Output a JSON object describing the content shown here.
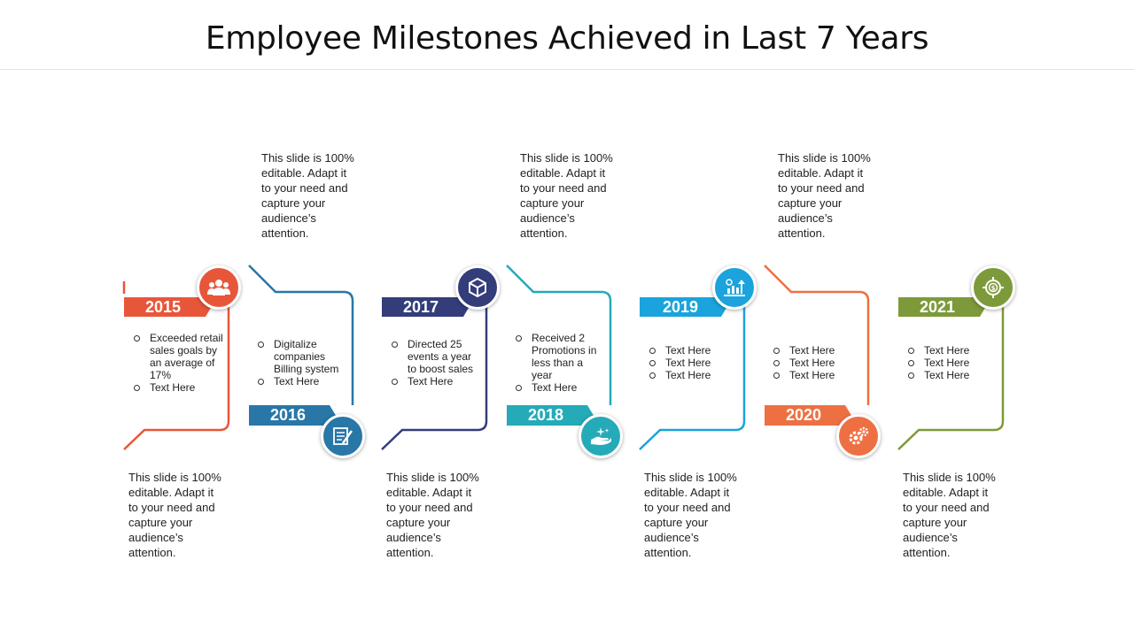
{
  "title": "Employee Milestones Achieved in Last 7 Years",
  "colors": {
    "y2015": "#e8563a",
    "y2016": "#2877a6",
    "y2017": "#333d7a",
    "y2018": "#25aab8",
    "y2019": "#1aa3dc",
    "y2020": "#ee7042",
    "y2021": "#7d9a3a"
  },
  "blurbs": {
    "b1": "This slide is 100% editable. Adapt it to your need and capture your audience’s attention.",
    "b2": "This slide is 100% editable. Adapt it to your need and capture your audience’s attention.",
    "b3": "This slide is 100% editable. Adapt it to your need and capture your audience’s attention.",
    "b4": "This slide is 100% editable. Adapt it to your need and capture your audience’s attention.",
    "b5": "This slide is 100% editable. Adapt it to your need and capture your audience’s attention.",
    "b6": "This slide is 100% editable. Adapt it to your need and capture your audience’s attention.",
    "b7": "This slide is 100% editable. Adapt it to your need and capture your audience’s attention."
  },
  "milestones": [
    {
      "year": "2015",
      "icon": "team-icon",
      "items": [
        "Exceeded retail sales goals by an average of 17%",
        "Text Here"
      ]
    },
    {
      "year": "2016",
      "icon": "document-pen-icon",
      "items": [
        "Digitalize companies Billing system",
        "Text Here"
      ]
    },
    {
      "year": "2017",
      "icon": "box-icon",
      "items": [
        "Directed 25 events a year to boost sales",
        "Text Here"
      ]
    },
    {
      "year": "2018",
      "icon": "hand-sparkle-icon",
      "items": [
        "Received 2 Promotions in less than a year",
        "Text Here"
      ]
    },
    {
      "year": "2019",
      "icon": "growth-chart-icon",
      "items": [
        "Text Here",
        "Text Here",
        "Text Here"
      ]
    },
    {
      "year": "2020",
      "icon": "gears-icon",
      "items": [
        "Text Here",
        "Text Here",
        "Text Here"
      ]
    },
    {
      "year": "2021",
      "icon": "target-dollar-icon",
      "items": [
        "Text Here",
        "Text Here",
        "Text Here"
      ]
    }
  ]
}
